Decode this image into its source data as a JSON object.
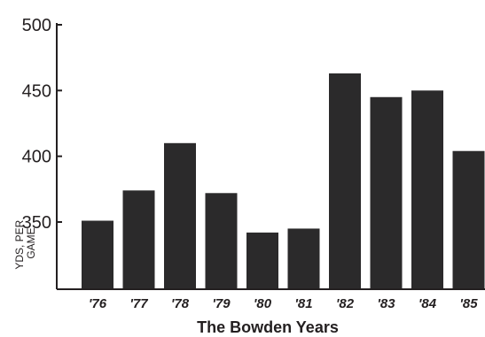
{
  "chart_data": {
    "type": "bar",
    "categories": [
      "'76",
      "'77",
      "'78",
      "'79",
      "'80",
      "'81",
      "'82",
      "'83",
      "'84",
      "'85"
    ],
    "values": [
      351,
      374,
      410,
      372,
      342,
      345,
      463,
      445,
      450,
      404
    ],
    "xlabel": "The Bowden Years",
    "ylabel_lines": [
      "YDS, PER",
      "GAME"
    ],
    "yticks": [
      350,
      400,
      450,
      500
    ],
    "ylim": [
      280,
      500
    ],
    "grid": false,
    "bar_color": "#2b2a2b"
  }
}
